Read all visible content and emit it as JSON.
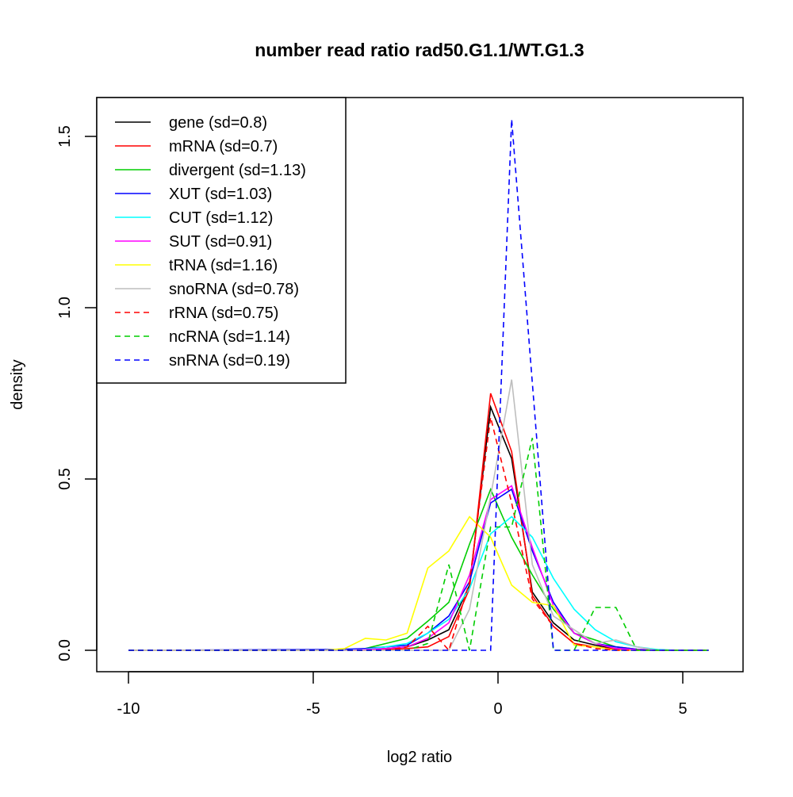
{
  "chart_data": {
    "type": "line",
    "title": "number read ratio rad50.G1.1/WT.G1.3",
    "xlabel": "log2 ratio",
    "ylabel": "density",
    "xlim": [
      -10.6,
      6.5
    ],
    "ylim": [
      -0.06,
      1.62
    ],
    "xticks": [
      -10,
      -5,
      0,
      5
    ],
    "xtick_labels": [
      "-10",
      "-5",
      "0",
      "5"
    ],
    "yticks": [
      0,
      0.5,
      1.0,
      1.5
    ],
    "ytick_labels": [
      "0.0",
      "0.5",
      "1.0",
      "1.5"
    ],
    "grid": false,
    "legend_position": "top-left",
    "x": [
      -10,
      -4.72,
      -4.15,
      -3.59,
      -3.03,
      -2.46,
      -1.9,
      -1.33,
      -0.77,
      -0.2,
      0.37,
      0.93,
      1.5,
      2.06,
      2.63,
      3.19,
      3.76,
      4.32,
      4.89,
      5.45,
      5.7
    ],
    "series": [
      {
        "name": "gene (sd=0.8)",
        "color": "#000000",
        "dash": false,
        "values": [
          0,
          0,
          0,
          0.002,
          0.005,
          0.01,
          0.03,
          0.06,
          0.19,
          0.71,
          0.56,
          0.17,
          0.08,
          0.03,
          0.015,
          0.005,
          0.002,
          0,
          0,
          0,
          0
        ]
      },
      {
        "name": "mRNA (sd=0.7)",
        "color": "#ff0000",
        "dash": false,
        "values": [
          0,
          0,
          0,
          0,
          0.002,
          0.005,
          0.01,
          0.04,
          0.18,
          0.75,
          0.58,
          0.16,
          0.07,
          0.02,
          0.01,
          0.003,
          0.001,
          0,
          0,
          0,
          0
        ]
      },
      {
        "name": "divergent (sd=1.13)",
        "color": "#00cd00",
        "dash": false,
        "values": [
          0,
          0,
          0,
          0.005,
          0.02,
          0.035,
          0.085,
          0.14,
          0.31,
          0.47,
          0.33,
          0.22,
          0.12,
          0.05,
          0.03,
          0.01,
          0.003,
          0,
          0,
          0,
          0
        ]
      },
      {
        "name": "XUT (sd=1.03)",
        "color": "#0000ff",
        "dash": false,
        "values": [
          0,
          0.002,
          0.003,
          0.005,
          0.01,
          0.015,
          0.05,
          0.1,
          0.2,
          0.43,
          0.47,
          0.29,
          0.14,
          0.05,
          0.02,
          0.01,
          0.003,
          0,
          0,
          0,
          0
        ]
      },
      {
        "name": "CUT (sd=1.12)",
        "color": "#00ffff",
        "dash": false,
        "values": [
          0,
          0,
          0,
          0.003,
          0.01,
          0.02,
          0.05,
          0.09,
          0.18,
          0.34,
          0.39,
          0.33,
          0.21,
          0.12,
          0.06,
          0.025,
          0.01,
          0.002,
          0,
          0,
          0
        ]
      },
      {
        "name": "SUT (sd=0.91)",
        "color": "#ff00ff",
        "dash": false,
        "values": [
          0,
          0,
          0,
          0.002,
          0.005,
          0.01,
          0.035,
          0.08,
          0.22,
          0.44,
          0.48,
          0.3,
          0.13,
          0.05,
          0.02,
          0.005,
          0.002,
          0,
          0,
          0,
          0
        ]
      },
      {
        "name": "tRNA (sd=1.16)",
        "color": "#ffff00",
        "dash": false,
        "values": [
          0,
          0,
          0.005,
          0.035,
          0.03,
          0.05,
          0.24,
          0.29,
          0.39,
          0.33,
          0.19,
          0.14,
          0.13,
          0.015,
          0.01,
          0,
          0,
          0,
          0,
          0,
          0
        ]
      },
      {
        "name": "snoRNA (sd=0.78)",
        "color": "#bebebe",
        "dash": false,
        "values": [
          0,
          0,
          0,
          0,
          0,
          0,
          0,
          0,
          0.12,
          0.45,
          0.79,
          0.25,
          0.1,
          0.06,
          0.02,
          0.03,
          0.01,
          0,
          0,
          0,
          0
        ]
      },
      {
        "name": "rRNA (sd=0.75)",
        "color": "#ff0000",
        "dash": true,
        "values": [
          0,
          0,
          0,
          0,
          0,
          0.01,
          0.07,
          0,
          0.2,
          0.68,
          0.43,
          0.15,
          0.07,
          0.02,
          0.005,
          0,
          0,
          0,
          0,
          0,
          0
        ]
      },
      {
        "name": "ncRNA (sd=1.14)",
        "color": "#00cd00",
        "dash": true,
        "values": [
          0,
          0,
          0,
          0,
          0,
          0,
          0.02,
          0.25,
          0,
          0.36,
          0.36,
          0.62,
          0,
          0,
          0.125,
          0.125,
          0,
          0,
          0,
          0,
          0
        ]
      },
      {
        "name": "snRNA (sd=0.19)",
        "color": "#0000ff",
        "dash": true,
        "values": [
          0,
          0,
          0,
          0,
          0,
          0,
          0,
          0,
          0,
          0,
          1.55,
          0.78,
          0,
          0,
          0,
          0,
          0,
          0,
          0,
          0,
          0
        ]
      }
    ]
  }
}
